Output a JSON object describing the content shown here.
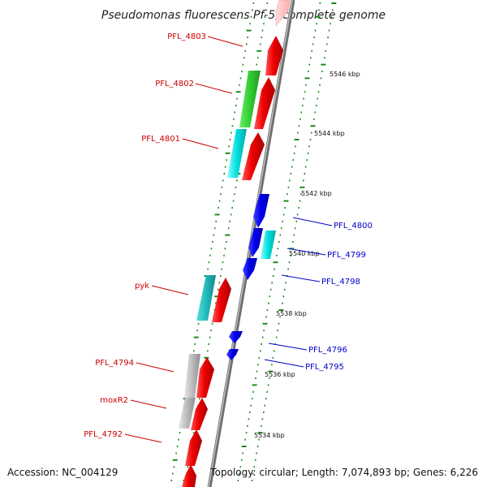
{
  "title": "Pseudomonas fluorescens Pf-5, complete genome",
  "accession": "Accession: NC_004129",
  "summary": "Topology: circular; Length: 7,074,893 bp; Genes: 6,226",
  "colors": {
    "backbone": "#8c8c8c",
    "tick": "#1a8a1a",
    "label_left": "#cc0000",
    "label_right": "#0000cc",
    "cds_forward": "#ee0000",
    "cds_reverse": "#0000ee",
    "gene_green": "#33cc33",
    "gene_cyan": "#00dddd",
    "gene_teal": "#22bbbb",
    "gene_gray": "#bbbbbb"
  },
  "kbp_labels": [
    "5546 kbp",
    "5544 kbp",
    "5542 kbp",
    "5540 kbp",
    "5538 kbp",
    "5536 kbp",
    "5534 kbp"
  ],
  "gene_labels_left": [
    "PFL_4803",
    "PFL_4802",
    "PFL_4801",
    "pyk",
    "PFL_4794",
    "moxR2",
    "PFL_4792"
  ],
  "gene_labels_right": [
    "PFL_4800",
    "PFL_4799",
    "PFL_4798",
    "PFL_4796",
    "PFL_4795"
  ]
}
